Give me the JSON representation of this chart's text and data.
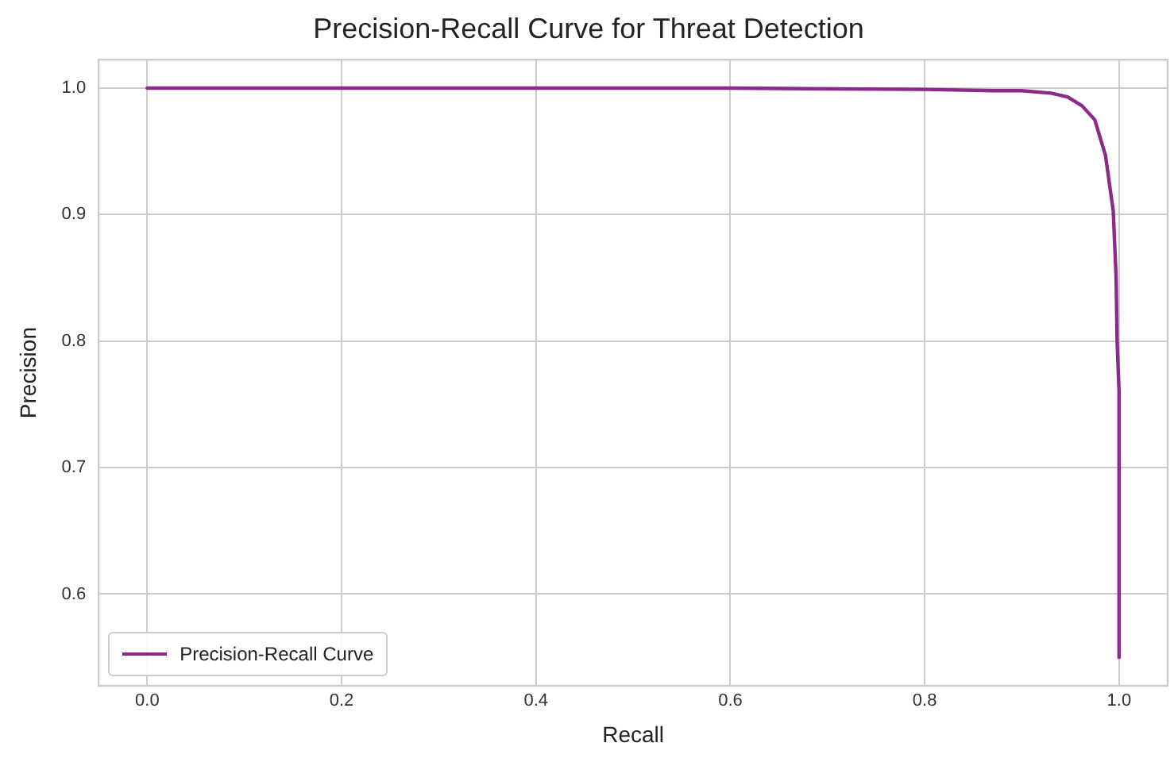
{
  "chart_data": {
    "type": "line",
    "title": "Precision-Recall Curve for Threat Detection",
    "xlabel": "Recall",
    "ylabel": "Precision",
    "series": [
      {
        "name": "Precision-Recall Curve",
        "color": "#8b2a8b",
        "x": [
          0.0,
          0.3,
          0.6,
          0.8,
          0.87,
          0.9,
          0.93,
          0.947,
          0.962,
          0.975,
          0.986,
          0.994,
          0.997,
          0.998,
          1.0,
          1.0
        ],
        "values": [
          1.0,
          1.0,
          1.0,
          0.999,
          0.998,
          0.998,
          0.996,
          0.993,
          0.986,
          0.975,
          0.947,
          0.903,
          0.85,
          0.8,
          0.76,
          0.55
        ]
      }
    ],
    "xlim": [
      -0.05,
      1.05
    ],
    "xticks": [
      {
        "value": 0,
        "label": "0.0"
      },
      0.2,
      0.4,
      0.6,
      0.8,
      {
        "value": 1,
        "label": "1.0"
      }
    ],
    "ylim": [
      0.5275,
      1.0225
    ],
    "yticks": [
      0.6,
      0.7,
      0.8,
      0.9,
      {
        "value": 1,
        "label": "1.0"
      }
    ],
    "grid": true,
    "legend": "bottom left",
    "marker": "none",
    "line_style": "solid"
  }
}
